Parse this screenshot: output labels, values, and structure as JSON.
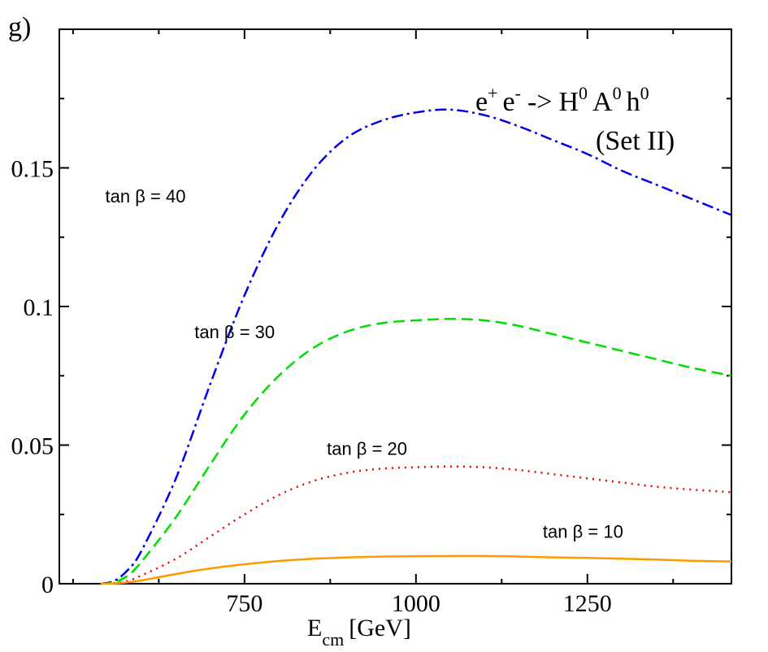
{
  "chart_data": {
    "type": "line",
    "panel_label": "g)",
    "title": {
      "prefix_e1": "e",
      "sup_plus": "+",
      "prefix_e2": "e",
      "sup_minus": "-",
      "arrow": "->",
      "H": "H",
      "A": "A",
      "h": "h",
      "sup_zero": "0"
    },
    "subtitle": "(Set II)",
    "xlabel": {
      "main": "E",
      "sub": "cm",
      "unit": "[GeV]"
    },
    "ylabel": "",
    "xlim": [
      480,
      1460
    ],
    "ylim": [
      0,
      0.2
    ],
    "x_ticks": [
      750,
      1000,
      1250
    ],
    "x_tick_labels": [
      "750",
      "1000",
      "1250"
    ],
    "y_ticks": [
      0,
      0.05,
      0.1,
      0.15
    ],
    "y_tick_labels": [
      "0",
      "0.05",
      "0.1",
      "0.15"
    ],
    "series": [
      {
        "name": "tan β = 40",
        "color": "#0000ee",
        "dash": "dashdot",
        "x": [
          540,
          560,
          580,
          600,
          650,
          700,
          750,
          800,
          850,
          900,
          950,
          1000,
          1050,
          1100,
          1150,
          1200,
          1250,
          1300,
          1350,
          1400,
          1460
        ],
        "y": [
          0,
          0.001,
          0.005,
          0.012,
          0.038,
          0.072,
          0.104,
          0.13,
          0.149,
          0.161,
          0.167,
          0.17,
          0.171,
          0.169,
          0.165,
          0.16,
          0.155,
          0.149,
          0.144,
          0.139,
          0.133
        ]
      },
      {
        "name": "tan β = 30",
        "color": "#00dd00",
        "dash": "dashed",
        "x": [
          540,
          560,
          580,
          600,
          650,
          700,
          750,
          800,
          850,
          900,
          950,
          1000,
          1050,
          1100,
          1150,
          1200,
          1250,
          1300,
          1350,
          1400,
          1460
        ],
        "y": [
          0,
          0.0005,
          0.003,
          0.008,
          0.024,
          0.043,
          0.061,
          0.075,
          0.085,
          0.091,
          0.094,
          0.095,
          0.0955,
          0.095,
          0.093,
          0.09,
          0.087,
          0.084,
          0.081,
          0.078,
          0.075
        ]
      },
      {
        "name": "tan β = 20",
        "color": "#ee0000",
        "dash": "dotted",
        "x": [
          540,
          560,
          580,
          600,
          650,
          700,
          750,
          800,
          850,
          900,
          950,
          1000,
          1050,
          1100,
          1150,
          1200,
          1250,
          1300,
          1350,
          1400,
          1460
        ],
        "y": [
          0,
          0.0002,
          0.001,
          0.003,
          0.009,
          0.017,
          0.025,
          0.032,
          0.037,
          0.04,
          0.0415,
          0.042,
          0.0423,
          0.042,
          0.041,
          0.0395,
          0.038,
          0.0365,
          0.035,
          0.034,
          0.033
        ]
      },
      {
        "name": "tan β = 10",
        "color": "#ff9900",
        "dash": "solid",
        "x": [
          540,
          560,
          580,
          600,
          650,
          700,
          750,
          800,
          850,
          900,
          950,
          1000,
          1050,
          1100,
          1150,
          1200,
          1250,
          1300,
          1350,
          1400,
          1460
        ],
        "y": [
          0,
          0.0001,
          0.0005,
          0.0012,
          0.0035,
          0.0055,
          0.007,
          0.0082,
          0.009,
          0.0095,
          0.0098,
          0.0099,
          0.01,
          0.01,
          0.0098,
          0.0095,
          0.0093,
          0.009,
          0.0087,
          0.0083,
          0.008
        ]
      }
    ],
    "annotations": [
      {
        "text": "tan β = 40",
        "x": 547,
        "y": 0.1375
      },
      {
        "text": "tan β = 30",
        "x": 677,
        "y": 0.0885
      },
      {
        "text": "tan β = 20",
        "x": 870,
        "y": 0.0465
      },
      {
        "text": "tan β = 10",
        "x": 1185,
        "y": 0.0165
      }
    ]
  }
}
